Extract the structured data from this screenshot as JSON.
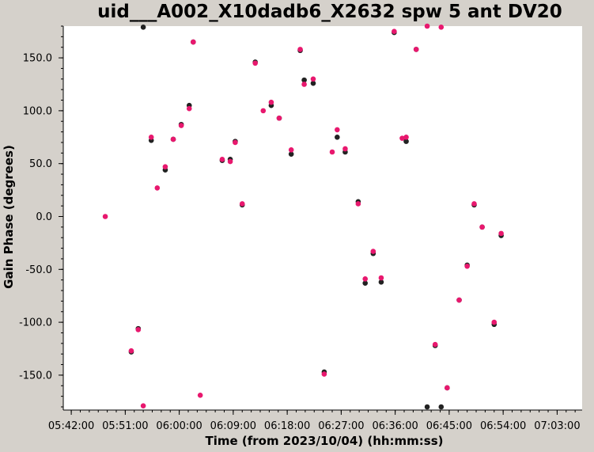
{
  "chart_data": {
    "type": "scatter",
    "title": "uid___A002_X10dadb6_X2632 spw 5 ant DV20",
    "xlabel": "Time (from 2023/10/04) (hh:mm:ss)",
    "ylabel": "Gain Phase (degrees)",
    "x_ticks": [
      "05:42:00",
      "05:51:00",
      "06:00:00",
      "06:09:00",
      "06:18:00",
      "06:27:00",
      "06:36:00",
      "06:45:00",
      "06:54:00",
      "07:03:00"
    ],
    "y_ticks": [
      "150.0",
      "100.0",
      "50.0",
      "0.0",
      "-50.0",
      "-100.0",
      "-150.0"
    ],
    "xlim": [
      "05:40:40",
      "07:07:10"
    ],
    "ylim": [
      -183,
      180
    ],
    "grid": false,
    "legend": "none",
    "series": [
      {
        "color": "#222222",
        "points": [
          [
            "05:52:00",
            -128
          ],
          [
            "05:53:10",
            -106
          ],
          [
            "05:54:00",
            179
          ],
          [
            "05:55:20",
            72
          ],
          [
            "05:57:40",
            44
          ],
          [
            "05:59:00",
            73
          ],
          [
            "06:00:20",
            87
          ],
          [
            "06:01:40",
            105
          ],
          [
            "06:02:20",
            165
          ],
          [
            "06:07:10",
            53
          ],
          [
            "06:08:30",
            54
          ],
          [
            "06:09:20",
            71
          ],
          [
            "06:10:30",
            11
          ],
          [
            "06:12:40",
            146
          ],
          [
            "06:15:20",
            105
          ],
          [
            "06:16:40",
            93
          ],
          [
            "06:18:40",
            59
          ],
          [
            "06:20:10",
            157
          ],
          [
            "06:20:50",
            129
          ],
          [
            "06:22:20",
            126
          ],
          [
            "06:24:10",
            -147
          ],
          [
            "06:26:20",
            75
          ],
          [
            "06:27:40",
            61
          ],
          [
            "06:29:50",
            14
          ],
          [
            "06:31:00",
            -63
          ],
          [
            "06:32:20",
            -35
          ],
          [
            "06:33:40",
            -62
          ],
          [
            "06:35:50",
            174
          ],
          [
            "06:37:50",
            71
          ],
          [
            "06:39:30",
            158
          ],
          [
            "06:41:20",
            -180
          ],
          [
            "06:42:40",
            -122
          ],
          [
            "06:43:40",
            -180
          ],
          [
            "06:44:40",
            -162
          ],
          [
            "06:46:40",
            -79
          ],
          [
            "06:48:00",
            -46
          ],
          [
            "06:49:10",
            11
          ],
          [
            "06:50:30",
            -10
          ],
          [
            "06:52:30",
            -102
          ],
          [
            "06:53:40",
            -18
          ]
        ]
      },
      {
        "color": "#e8186e",
        "points": [
          [
            "05:47:40",
            0
          ],
          [
            "05:52:00",
            -127
          ],
          [
            "05:53:10",
            -107
          ],
          [
            "05:54:00",
            -179
          ],
          [
            "05:55:20",
            75
          ],
          [
            "05:56:20",
            27
          ],
          [
            "05:57:40",
            47
          ],
          [
            "05:59:00",
            73
          ],
          [
            "06:00:20",
            86
          ],
          [
            "06:01:40",
            102
          ],
          [
            "06:02:20",
            165
          ],
          [
            "06:03:30",
            -169
          ],
          [
            "06:07:10",
            54
          ],
          [
            "06:08:30",
            52
          ],
          [
            "06:09:20",
            70
          ],
          [
            "06:10:30",
            12
          ],
          [
            "06:12:40",
            145
          ],
          [
            "06:14:00",
            100
          ],
          [
            "06:15:20",
            108
          ],
          [
            "06:16:40",
            93
          ],
          [
            "06:18:40",
            63
          ],
          [
            "06:20:10",
            158
          ],
          [
            "06:20:50",
            125
          ],
          [
            "06:22:20",
            130
          ],
          [
            "06:24:10",
            -149
          ],
          [
            "06:25:30",
            61
          ],
          [
            "06:26:20",
            82
          ],
          [
            "06:27:40",
            64
          ],
          [
            "06:29:50",
            12
          ],
          [
            "06:31:00",
            -59
          ],
          [
            "06:32:20",
            -33
          ],
          [
            "06:33:40",
            -58
          ],
          [
            "06:35:50",
            175
          ],
          [
            "06:37:10",
            74
          ],
          [
            "06:37:50",
            75
          ],
          [
            "06:39:30",
            158
          ],
          [
            "06:41:20",
            180
          ],
          [
            "06:42:40",
            -121
          ],
          [
            "06:43:40",
            179
          ],
          [
            "06:44:40",
            -162
          ],
          [
            "06:46:40",
            -79
          ],
          [
            "06:48:00",
            -47
          ],
          [
            "06:49:10",
            12
          ],
          [
            "06:50:30",
            -10
          ],
          [
            "06:52:30",
            -100
          ],
          [
            "06:53:40",
            -16
          ]
        ]
      }
    ]
  }
}
